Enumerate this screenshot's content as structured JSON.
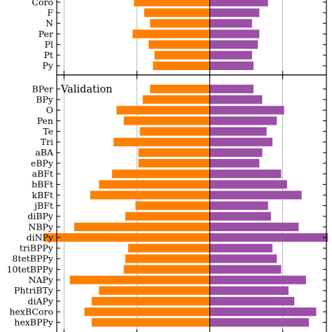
{
  "chart_data": {
    "type": "bar",
    "orientation": "horizontal-diverging",
    "x_range": [
      -10.5,
      8
    ],
    "gridlines_at": [
      -10,
      -5,
      5
    ],
    "grid": true,
    "colors": {
      "left": "#ff8000",
      "right": "#9b4fa6"
    },
    "panels": [
      {
        "title": "",
        "categories": [
          "Coro",
          "F",
          "N",
          "Per",
          "Pl",
          "Pt",
          "Py"
        ],
        "left_values": [
          -5.2,
          -4.5,
          -4.1,
          -5.3,
          -4.2,
          -3.8,
          -3.9
        ],
        "right_values": [
          4.0,
          3.4,
          2.9,
          3.4,
          3.3,
          2.9,
          3.0
        ]
      },
      {
        "title": "Validation",
        "categories": [
          "BPer",
          "BPy",
          "O",
          "Pen",
          "Te",
          "Tri",
          "aBA",
          "eBPy",
          "aBFt",
          "bBFt",
          "kBFt",
          "jBFt",
          "diBPy",
          "NBPy",
          "diNPy",
          "triBPPy",
          "8tetBPPy",
          "10tetBPPy",
          "NAPy",
          "PhtriBTy",
          "diAPy",
          "hexBCoro",
          "hexBPPy"
        ],
        "left_values": [
          -4.1,
          -4.6,
          -6.4,
          -5.9,
          -4.8,
          -6.6,
          -4.9,
          -4.9,
          -6.7,
          -7.6,
          -8.2,
          -5.1,
          -5.8,
          -9.3,
          -11.4,
          -5.6,
          -5.8,
          -5.9,
          -9.6,
          -7.6,
          -8.1,
          -8.6,
          -8.1
        ],
        "right_values": [
          3.0,
          3.6,
          5.1,
          4.6,
          3.9,
          4.3,
          3.6,
          3.4,
          4.9,
          5.3,
          6.3,
          4.0,
          4.2,
          6.1,
          8.1,
          4.3,
          4.6,
          4.9,
          6.6,
          5.4,
          5.8,
          7.3,
          6.8
        ]
      }
    ]
  }
}
